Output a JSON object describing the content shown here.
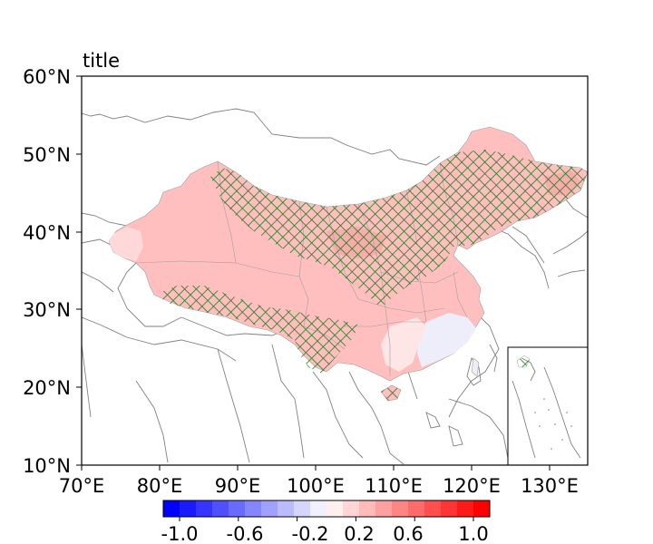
{
  "title": "title",
  "lat_ticks": [
    "60°N",
    "50°N",
    "40°N",
    "30°N",
    "20°N",
    "10°N"
  ],
  "lon_ticks": [
    "70°E",
    "80°E",
    "90°E",
    "100°E",
    "110°E",
    "120°E",
    "130°E"
  ],
  "colorbar": {
    "ticks": [
      "-1.0",
      "-0.6",
      "-0.2",
      "0.2",
      "0.6",
      "1.0"
    ],
    "range": [
      -1.0,
      1.0
    ],
    "colors": [
      "#0000ff",
      "#1a1aff",
      "#3535ff",
      "#5050ff",
      "#6a6aff",
      "#8585ff",
      "#a0a0ff",
      "#babaff",
      "#d5d5ff",
      "#f0f0ff",
      "#fff0f0",
      "#ffd5d5",
      "#ffbaba",
      "#ffa0a0",
      "#ff8585",
      "#ff6a6a",
      "#ff5050",
      "#ff3535",
      "#ff1a1a",
      "#ff0000"
    ]
  },
  "colors": {
    "fill_main": "#ffbfbf",
    "fill_light": "#ffd9d9",
    "fill_dark": "#f7a8a8",
    "fill_bluish": "#eeeefb",
    "hatch": "#1e7d1e",
    "border": "#808080"
  }
}
